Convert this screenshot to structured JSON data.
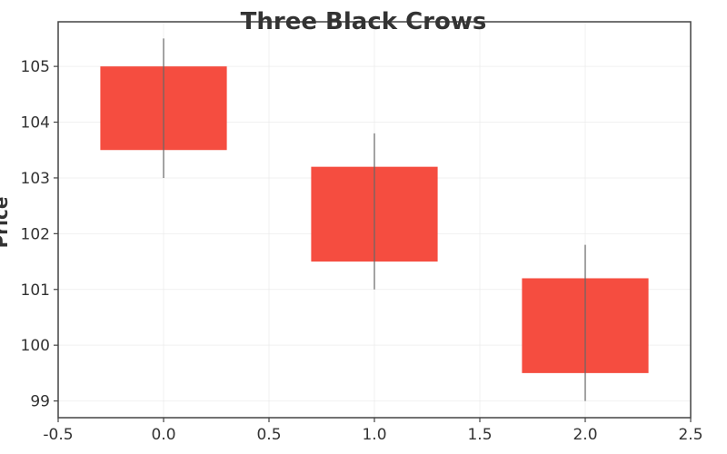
{
  "chart_data": {
    "type": "candlestick",
    "title": "Three Black Crows",
    "xlabel": "",
    "ylabel": "Price",
    "xlim": [
      -0.5,
      2.5
    ],
    "ylim": [
      98.7,
      105.8
    ],
    "x_ticks": [
      -0.5,
      0.0,
      0.5,
      1.0,
      1.5,
      2.0,
      2.5
    ],
    "x_tick_labels": [
      "-0.5",
      "0.0",
      "0.5",
      "1.0",
      "1.5",
      "2.0",
      "2.5"
    ],
    "y_ticks": [
      99,
      100,
      101,
      102,
      103,
      104,
      105
    ],
    "y_tick_labels": [
      "99",
      "100",
      "101",
      "102",
      "103",
      "104",
      "105"
    ],
    "grid": true,
    "candle_width": 0.6,
    "candle_color": "#f44336",
    "candles": [
      {
        "x": 0,
        "open": 105.0,
        "close": 103.5,
        "high": 105.5,
        "low": 103.0
      },
      {
        "x": 1,
        "open": 103.2,
        "close": 101.5,
        "high": 103.8,
        "low": 101.0
      },
      {
        "x": 2,
        "open": 101.2,
        "close": 99.5,
        "high": 101.8,
        "low": 99.0
      }
    ]
  }
}
